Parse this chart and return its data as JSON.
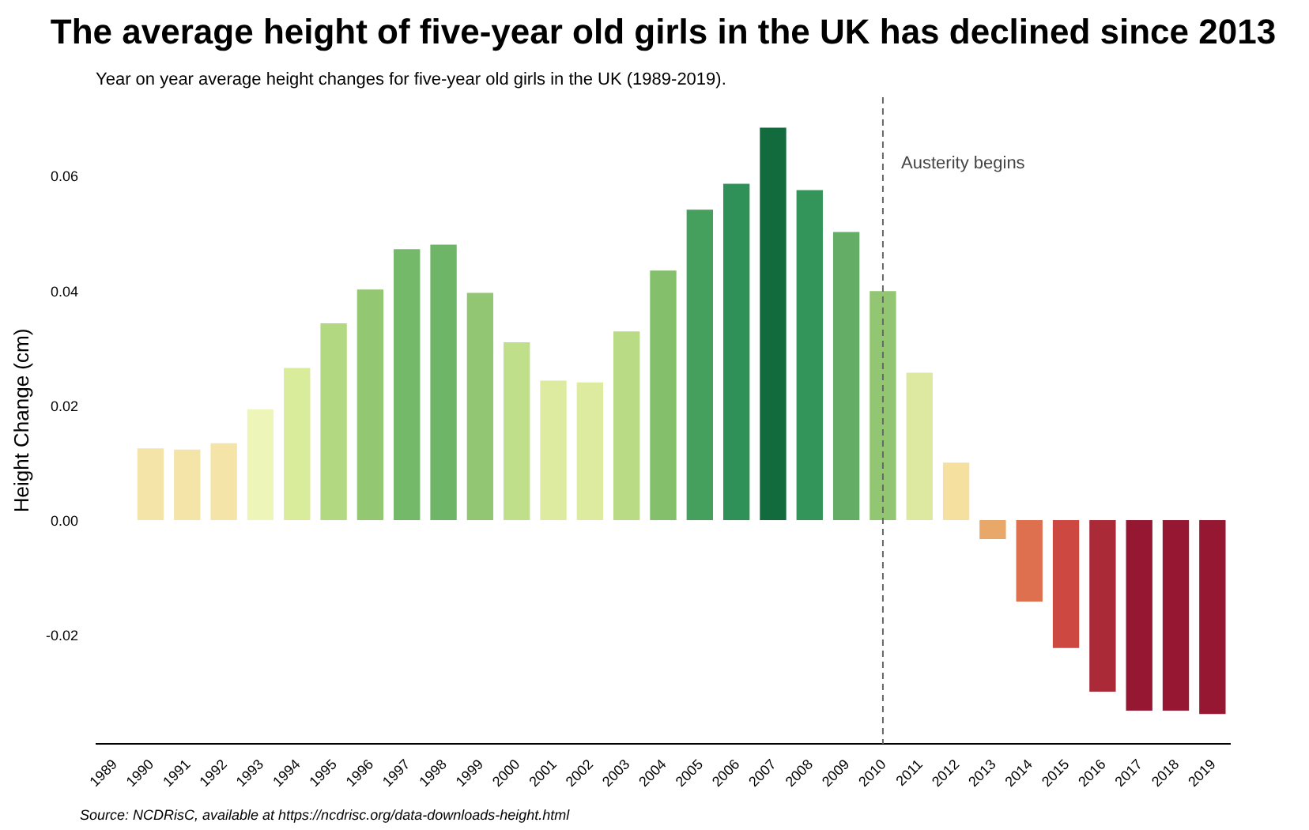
{
  "chart_data": {
    "type": "bar",
    "title": "The average height of five-year old girls in the UK has declined since 2013",
    "subtitle": "Year on year average height changes for five-year old girls in the UK (1989-2019).",
    "ylabel": "Height Change (cm)",
    "categories": [
      "1989",
      "1990",
      "1991",
      "1992",
      "1993",
      "1994",
      "1995",
      "1996",
      "1997",
      "1998",
      "1999",
      "2000",
      "2001",
      "2002",
      "2003",
      "2004",
      "2005",
      "2006",
      "2007",
      "2008",
      "2009",
      "2010",
      "2011",
      "2012",
      "2013",
      "2014",
      "2015",
      "2016",
      "2017",
      "2018",
      "2019"
    ],
    "values": [
      null,
      0.0125,
      0.0123,
      0.0134,
      0.0193,
      0.0265,
      0.0343,
      0.0402,
      0.0472,
      0.048,
      0.0396,
      0.031,
      0.0243,
      0.024,
      0.0329,
      0.0435,
      0.0541,
      0.0586,
      0.0684,
      0.0575,
      0.0502,
      0.0399,
      0.0257,
      0.01,
      -0.0033,
      -0.0142,
      -0.0223,
      -0.0299,
      -0.0332,
      -0.0332,
      -0.0338
    ],
    "colors": [
      "#f4e4a8",
      "#f4e4a8",
      "#f4e4a8",
      "#f4e4a8",
      "#eef5b8",
      "#d9ec9c",
      "#b3d882",
      "#93c772",
      "#74b86a",
      "#6fb568",
      "#92c672",
      "#c0df8a",
      "#dceba0",
      "#dceba0",
      "#b9db86",
      "#84c06c",
      "#44a05c",
      "#2f9158",
      "#116b3d",
      "#33955a",
      "#64ad66",
      "#92c672",
      "#dde9a0",
      "#f6e0a0",
      "#e8a86a",
      "#de7050",
      "#cc4840",
      "#ab2a38",
      "#951732",
      "#951732",
      "#951732"
    ],
    "ylim": [
      -0.039,
      0.0737
    ],
    "yticks": [
      {
        "value": -0.02,
        "label": "-0.02"
      },
      {
        "value": 0,
        "label": "0.00"
      },
      {
        "value": 0.02,
        "label": "0.02"
      },
      {
        "value": 0.04,
        "label": "0.04"
      },
      {
        "value": 0.06,
        "label": "0.06"
      }
    ],
    "ref_lines": [
      {
        "axis": "x",
        "value": "2010",
        "label": "Austerity begins",
        "color": "#666666",
        "line_style": "dashed"
      }
    ],
    "annotations": [
      "Source: NCDRisC, available at https://ncdrisc.org/data-downloads-height.html"
    ],
    "grid": false
  }
}
